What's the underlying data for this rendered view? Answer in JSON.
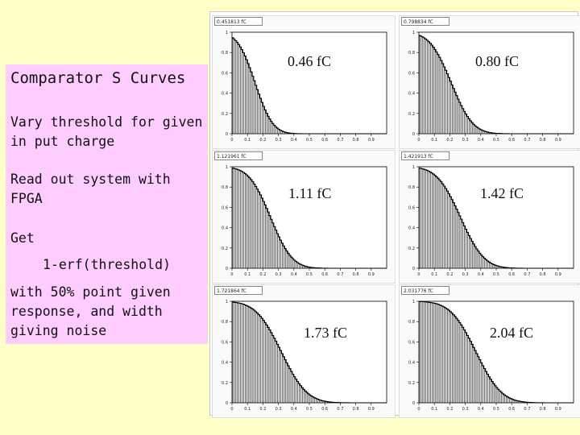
{
  "slide": {
    "title": "Comparator S Curves",
    "lines": [
      "Vary threshold for given",
      "in put charge",
      "Read out system with",
      "FPGA",
      "Get",
      "1-erf(threshold)",
      "with 50% point given",
      "response, and width",
      "giving noise"
    ]
  },
  "chart_data": [
    {
      "type": "bar",
      "title": "0.46 fC",
      "stat_label": "0.451813 fC",
      "x_ticks": [
        "0",
        "0.1",
        "0.2",
        "0.3",
        "0.4",
        "0.5",
        "0.6",
        "0.7",
        "0.8",
        "0.9"
      ],
      "y_ticks": [
        "0",
        "0.2",
        "0.4",
        "0.6",
        "0.8",
        "1"
      ],
      "xlim": [
        0,
        1
      ],
      "ylim": [
        0,
        1
      ],
      "midpoint": 0.15,
      "width": 0.09
    },
    {
      "type": "bar",
      "title": "0.80 fC",
      "stat_label": "0.798834 fC",
      "x_ticks": [
        "0",
        "0.1",
        "0.2",
        "0.3",
        "0.4",
        "0.5",
        "0.6",
        "0.7",
        "0.8",
        "0.9"
      ],
      "y_ticks": [
        "0",
        "0.2",
        "0.4",
        "0.6",
        "0.8",
        "1"
      ],
      "xlim": [
        0,
        1
      ],
      "ylim": [
        0,
        1
      ],
      "midpoint": 0.21,
      "width": 0.11
    },
    {
      "type": "bar",
      "title": "1.11 fC",
      "stat_label": "1.121961 fC",
      "x_ticks": [
        "0",
        "0.1",
        "0.2",
        "0.3",
        "0.4",
        "0.5",
        "0.6",
        "0.7",
        "0.8",
        "0.9"
      ],
      "y_ticks": [
        "0",
        "0.2",
        "0.4",
        "0.6",
        "0.8",
        "1"
      ],
      "xlim": [
        0,
        1
      ],
      "ylim": [
        0,
        1
      ],
      "midpoint": 0.25,
      "width": 0.11
    },
    {
      "type": "bar",
      "title": "1.42 fC",
      "stat_label": "1.421913 fC",
      "x_ticks": [
        "0",
        "0.1",
        "0.2",
        "0.3",
        "0.4",
        "0.5",
        "0.6",
        "0.7",
        "0.8",
        "0.9"
      ],
      "y_ticks": [
        "0",
        "0.2",
        "0.4",
        "0.6",
        "0.8",
        "1"
      ],
      "xlim": [
        0,
        1
      ],
      "ylim": [
        0,
        1
      ],
      "midpoint": 0.27,
      "width": 0.12
    },
    {
      "type": "bar",
      "title": "1.73 fC",
      "stat_label": "1.721864 fC",
      "x_ticks": [
        "0",
        "0.1",
        "0.2",
        "0.3",
        "0.4",
        "0.5",
        "0.6",
        "0.7",
        "0.8",
        "0.9"
      ],
      "y_ticks": [
        "0",
        "0.2",
        "0.4",
        "0.6",
        "0.8",
        "1"
      ],
      "xlim": [
        0,
        1
      ],
      "ylim": [
        0,
        1
      ],
      "midpoint": 0.32,
      "width": 0.13
    },
    {
      "type": "bar",
      "title": "2.04 fC",
      "stat_label": "2.031776 fC",
      "x_ticks": [
        "0",
        "0.1",
        "0.2",
        "0.3",
        "0.4",
        "0.5",
        "0.6",
        "0.7",
        "0.8",
        "0.9"
      ],
      "y_ticks": [
        "0",
        "0.2",
        "0.4",
        "0.6",
        "0.8",
        "1"
      ],
      "xlim": [
        0,
        1
      ],
      "ylim": [
        0,
        1
      ],
      "midpoint": 0.37,
      "width": 0.13
    }
  ],
  "colors": {
    "background": "#ffffc8",
    "text_panel": "#ffccff",
    "plot_line": "#000000"
  }
}
